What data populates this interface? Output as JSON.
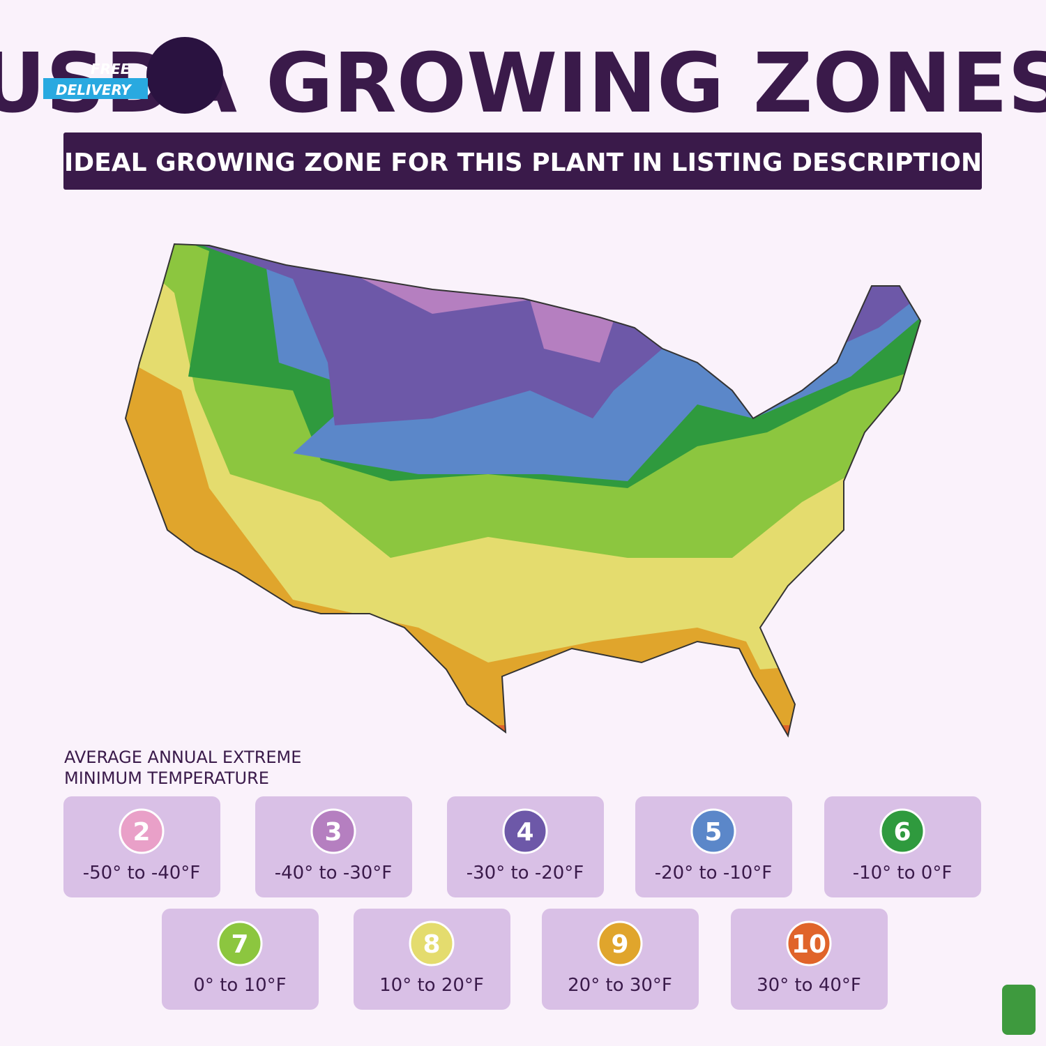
{
  "header": {
    "title": "USDA GROWING ZONES",
    "badge": [
      "FREE",
      "DELIVERY"
    ],
    "subtitle": "IDEAL GROWING ZONE FOR THIS PLANT IN LISTING DESCRIPTION"
  },
  "legend": {
    "title": [
      "AVERAGE ANNUAL EXTREME",
      "MINIMUM TEMPERATURE"
    ],
    "zones": [
      {
        "zone": 2,
        "range": "-50° to -40°F",
        "color": "#e9a0c8"
      },
      {
        "zone": 3,
        "range": "-40° to -30°F",
        "color": "#b57fc0"
      },
      {
        "zone": 4,
        "range": "-30° to -20°F",
        "color": "#6d58a8"
      },
      {
        "zone": 5,
        "range": "-20° to -10°F",
        "color": "#5b87c9"
      },
      {
        "zone": 6,
        "range": "-10° to 0°F",
        "color": "#2f9a3e"
      },
      {
        "zone": 7,
        "range": "0° to 10°F",
        "color": "#8cc63f"
      },
      {
        "zone": 8,
        "range": "10° to 20°F",
        "color": "#e4dc6e"
      },
      {
        "zone": 9,
        "range": "20° to 30°F",
        "color": "#e0a52c"
      },
      {
        "zone": 10,
        "range": "30° to 40°F",
        "color": "#e0642a"
      }
    ]
  }
}
